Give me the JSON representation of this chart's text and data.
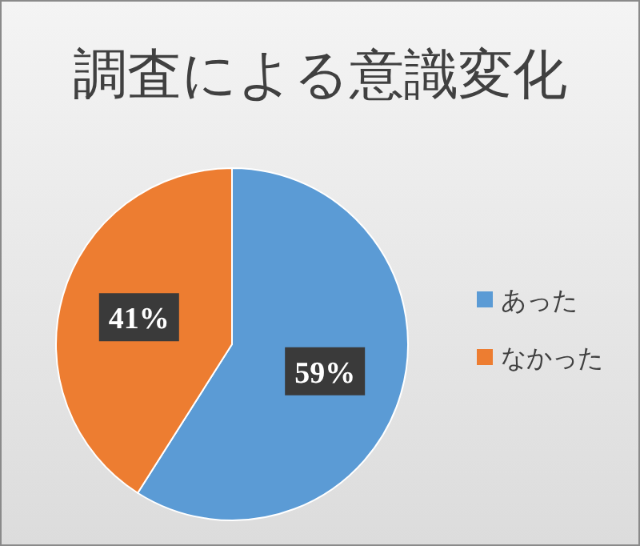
{
  "chart_data": {
    "type": "pie",
    "title": "調査による意識変化",
    "categories": [
      "あった",
      "なかった"
    ],
    "values": [
      59,
      41
    ],
    "colors": [
      "#5b9bd5",
      "#ed7d31"
    ],
    "value_labels": [
      "59%",
      "41%"
    ],
    "legend": "right"
  }
}
